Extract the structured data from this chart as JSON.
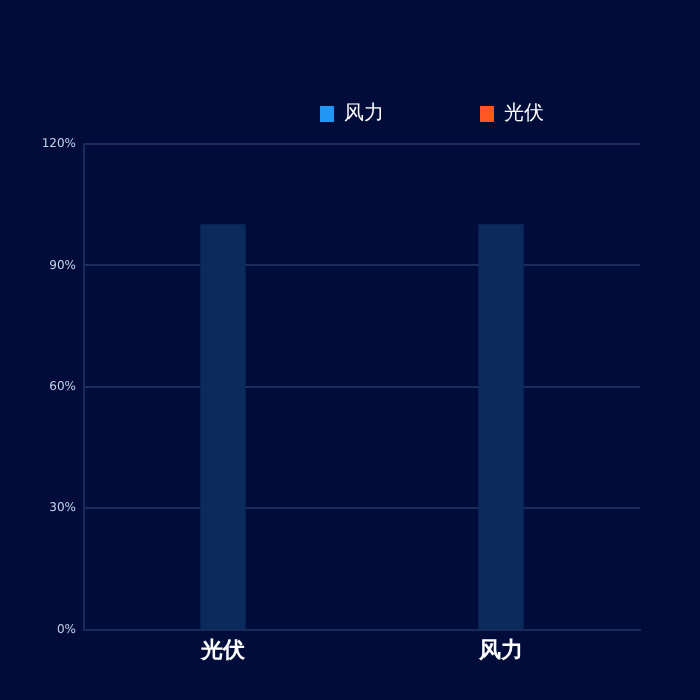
{
  "chart_data": {
    "type": "bar",
    "categories": [
      "光伏",
      "风力"
    ],
    "series": [
      {
        "name": "风力",
        "color": "#2196f3",
        "values": [
          null,
          null
        ]
      },
      {
        "name": "光伏",
        "color": "#ff5722",
        "values": [
          null,
          null
        ]
      },
      {
        "color": "#0c2a5c",
        "values": [
          100,
          100
        ]
      }
    ],
    "ylim": [
      0,
      120
    ],
    "yticks": [
      {
        "value": 0,
        "label": "0%"
      },
      {
        "value": 30,
        "label": "30%"
      },
      {
        "value": 60,
        "label": "60%"
      },
      {
        "value": 90,
        "label": "90%"
      },
      {
        "value": 120,
        "label": "120%"
      }
    ],
    "grid": "y",
    "legend": "top right"
  }
}
